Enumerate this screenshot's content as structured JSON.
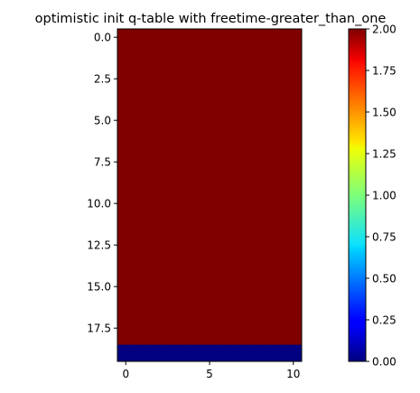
{
  "chart_data": {
    "type": "heatmap",
    "title": "optimistic init q-table with freetime-greater_than_one",
    "xlabel": "",
    "ylabel": "",
    "rows": 20,
    "cols": 11,
    "row_values": [
      2,
      2,
      2,
      2,
      2,
      2,
      2,
      2,
      2,
      2,
      2,
      2,
      2,
      2,
      2,
      2,
      2,
      2,
      2,
      0
    ],
    "xlim": [
      -0.5,
      10.5
    ],
    "ylim": [
      19.5,
      -0.5
    ],
    "x_ticks": [
      0,
      5,
      10
    ],
    "x_tick_labels": [
      "0",
      "5",
      "10"
    ],
    "y_ticks": [
      0,
      2.5,
      5,
      7.5,
      10,
      12.5,
      15,
      17.5
    ],
    "y_tick_labels": [
      "0.0",
      "2.5",
      "5.0",
      "7.5",
      "10.0",
      "12.5",
      "15.0",
      "17.5"
    ],
    "colormap": "jet",
    "colorbar": {
      "vmin": 0,
      "vmax": 2,
      "ticks": [
        0,
        0.25,
        0.5,
        0.75,
        1,
        1.25,
        1.5,
        1.75,
        2
      ],
      "tick_labels": [
        "0.00",
        "0.25",
        "0.50",
        "0.75",
        "1.00",
        "1.25",
        "1.50",
        "1.75",
        "2.00"
      ]
    },
    "grid": false,
    "colors": {
      "max_value_color": "#7f0000",
      "min_value_color": "#00007f"
    }
  }
}
